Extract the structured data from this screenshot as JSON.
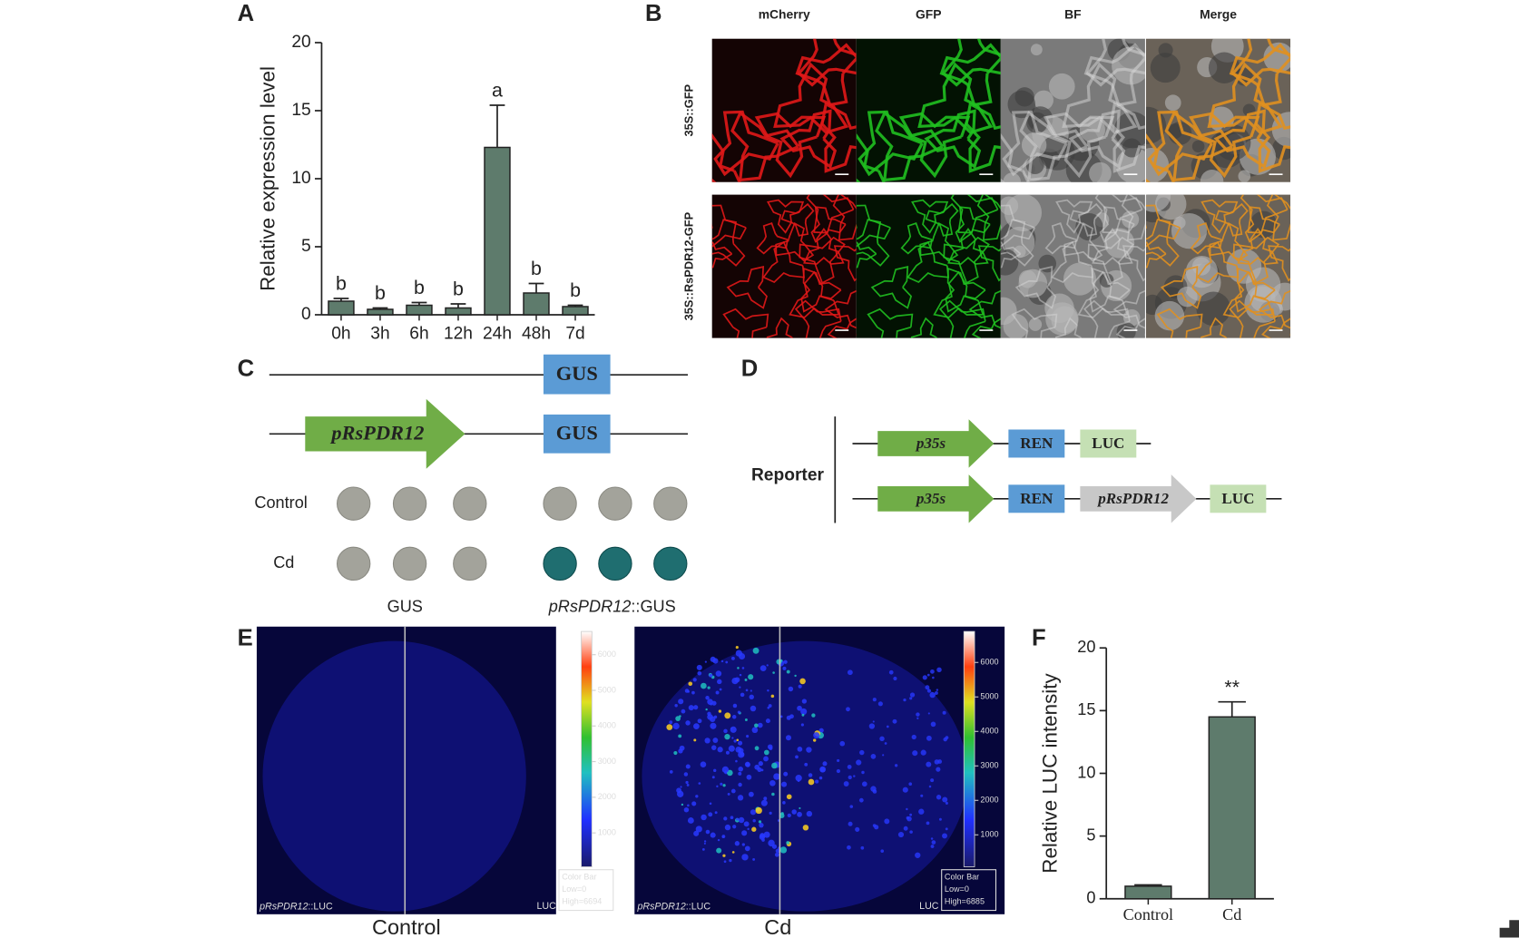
{
  "chart_data": [
    {
      "type": "bar",
      "panel": "A",
      "ylabel": "Relative expression level",
      "categories": [
        "0h",
        "3h",
        "6h",
        "12h",
        "24h",
        "48h",
        "7d"
      ],
      "values": [
        1.0,
        0.4,
        0.7,
        0.5,
        12.3,
        1.6,
        0.6
      ],
      "errors": [
        0.2,
        0.1,
        0.2,
        0.3,
        3.1,
        0.7,
        0.1
      ],
      "annotations": [
        "b",
        "b",
        "b",
        "b",
        "a",
        "b",
        "b"
      ],
      "color": "#5e7b6c",
      "ylim": [
        0,
        20
      ],
      "yticks": [
        0,
        5,
        10,
        15,
        20
      ]
    },
    {
      "type": "bar",
      "panel": "F",
      "ylabel": "Relative LUC intensity",
      "categories": [
        "Control",
        "Cd"
      ],
      "values": [
        1.0,
        14.5
      ],
      "errors": [
        0.1,
        1.2
      ],
      "annotations": [
        null,
        "**"
      ],
      "color": "#5e7b6c",
      "ylim": [
        0,
        20
      ],
      "yticks": [
        0,
        5,
        10,
        15,
        20
      ]
    }
  ],
  "panel_b": {
    "label": "B",
    "columns": [
      "mCherry",
      "GFP",
      "BF",
      "Merge"
    ],
    "rows": [
      "35S::GFP",
      "35S::RsPDR12-GFP"
    ]
  },
  "panel_c": {
    "label": "C",
    "gus": "GUS",
    "promoter": "pRsPDR12",
    "rows": [
      "Control",
      "Cd"
    ],
    "groups": [
      {
        "text": "GUS"
      },
      {
        "italic": "pRsPDR12",
        "text": "::GUS"
      }
    ]
  },
  "panel_d": {
    "label": "D",
    "title": "Reporter",
    "p35s": "p35s",
    "ren": "REN",
    "luc": "LUC",
    "promoter": "pRsPDR12"
  },
  "panel_e": {
    "label": "E",
    "colorbar_ticks": [
      1000,
      2000,
      3000,
      4000,
      5000,
      6000
    ],
    "images": [
      {
        "caption": "Control",
        "promoter": "pRsPDR12",
        "construct": "::LUC",
        "corner": "LUC",
        "bar_title": "Color Bar",
        "low": "Low=0",
        "high": "High=6694"
      },
      {
        "caption": "Cd",
        "promoter": "pRsPDR12",
        "construct": "::LUC",
        "corner": "LUC",
        "bar_title": "Color Bar",
        "low": "Low=0",
        "high": "High=6885"
      }
    ]
  }
}
